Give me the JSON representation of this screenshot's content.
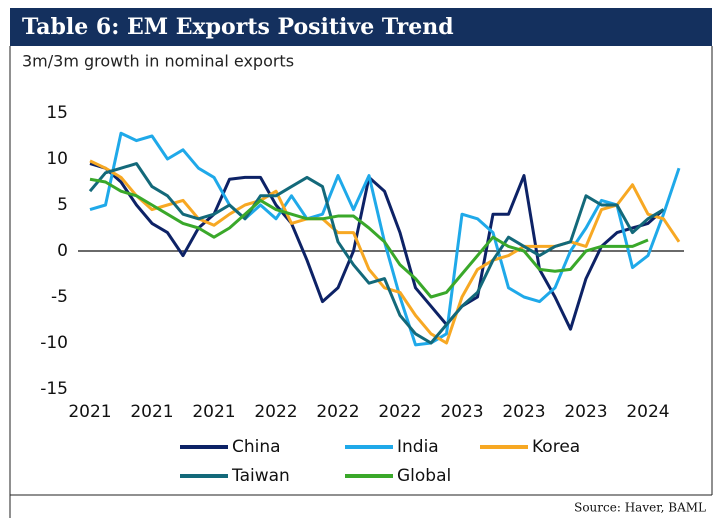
{
  "chart_data": {
    "type": "line",
    "title": "Table 6: EM Exports Positive Trend",
    "subtitle": "3m/3m growth in nominal exports",
    "source": "Source: Haver, BAML",
    "categories": [
      "2021",
      null,
      null,
      null,
      "2021",
      null,
      null,
      null,
      "2021",
      null,
      null,
      null,
      "2022",
      null,
      null,
      null,
      "2022",
      null,
      null,
      null,
      "2022",
      null,
      null,
      null,
      "2023",
      null,
      null,
      null,
      "2023",
      null,
      null,
      null,
      "2023",
      null,
      null,
      null,
      "2024",
      null,
      null
    ],
    "series": [
      {
        "name": "China",
        "color": "#0d2266",
        "values": [
          9.5,
          9,
          7.5,
          5,
          3,
          2,
          -0.5,
          2.5,
          4,
          7.8,
          8,
          8,
          5,
          3,
          -1,
          -5.5,
          -4,
          0,
          8,
          6.5,
          2,
          -4,
          -6,
          -8,
          -6,
          -5,
          4,
          4,
          8.2,
          -2,
          -5,
          -8.5,
          -3,
          0.5,
          2,
          2.5,
          3,
          4.5,
          null
        ]
      },
      {
        "name": "India",
        "color": "#1fa9e9",
        "values": [
          4.5,
          5,
          12.8,
          12,
          12.5,
          10,
          11,
          9,
          8,
          5,
          3.5,
          5,
          3.5,
          6,
          3.5,
          4,
          8.2,
          4.5,
          8.2,
          1,
          -5,
          -10.2,
          -10,
          -9,
          4,
          3.5,
          2,
          -4,
          -5,
          -5.5,
          -4,
          0,
          2.5,
          5.5,
          5,
          -1.8,
          -0.5,
          4,
          9
        ]
      },
      {
        "name": "Korea",
        "color": "#f7a823",
        "values": [
          9.8,
          9,
          8,
          6,
          4.5,
          5,
          5.5,
          3.5,
          2.8,
          4,
          5,
          5.5,
          6.5,
          3,
          3.5,
          3.5,
          2,
          2,
          -2,
          -4,
          -4.5,
          -7,
          -9,
          -10,
          -5,
          -2,
          -1,
          -0.5,
          0.5,
          0.5,
          0.5,
          1,
          0.5,
          4.5,
          5,
          7.2,
          4,
          3.5,
          1
        ]
      },
      {
        "name": "Taiwan",
        "color": "#13697a",
        "values": [
          6.5,
          8.5,
          9,
          9.5,
          7,
          6,
          4,
          3.5,
          4,
          5,
          3.5,
          6,
          6,
          7,
          8,
          7,
          1,
          -1.5,
          -3.5,
          -3,
          -7,
          -9,
          -10,
          -8,
          -6,
          -4.5,
          -1,
          1.5,
          0.5,
          -0.5,
          0.5,
          1,
          6,
          5,
          5,
          2,
          3.5,
          4.5,
          null
        ]
      },
      {
        "name": "Global",
        "color": "#3aa82a",
        "values": [
          7.8,
          7.5,
          6.5,
          6,
          5,
          4,
          3,
          2.5,
          1.5,
          2.5,
          4,
          5.5,
          4.5,
          4,
          3.5,
          3.5,
          3.8,
          3.8,
          2.5,
          1,
          -1.5,
          -3,
          -5,
          -4.5,
          -2.5,
          -0.5,
          1.5,
          0.5,
          0,
          -2,
          -2.2,
          -2,
          0,
          0.5,
          0.5,
          0.5,
          1.2,
          null,
          null
        ]
      }
    ],
    "ylim": [
      -15,
      15
    ],
    "yticks": [
      -15,
      -10,
      -5,
      0,
      5,
      10,
      15
    ],
    "grid": false,
    "legend": "bottom"
  }
}
